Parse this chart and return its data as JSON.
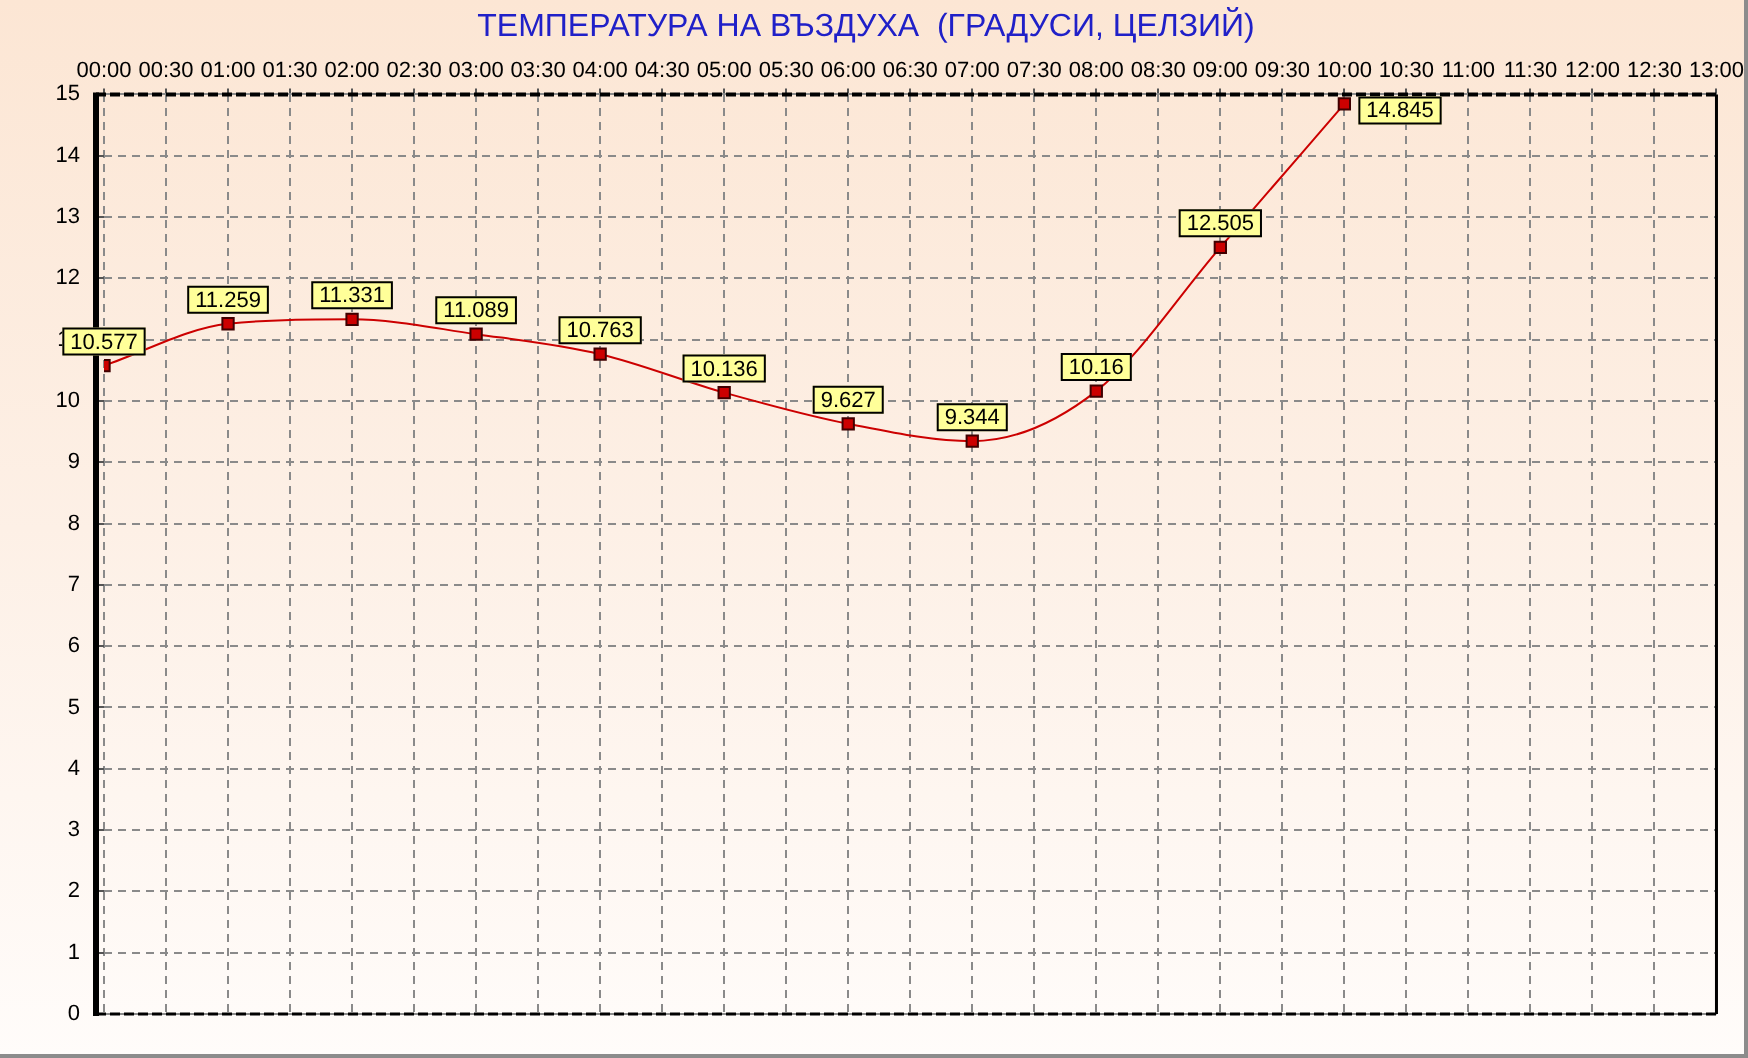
{
  "chart_data": {
    "type": "line",
    "title": "ТЕМПЕРАТУРА НА ВЪЗДУХА  (ГРАДУСИ, ЦЕЛЗИЙ)",
    "x": [
      0,
      1,
      2,
      3,
      4,
      5,
      6,
      7,
      8,
      9,
      10
    ],
    "series": [
      {
        "color": "#cc0000",
        "values": [
          10.577,
          11.259,
          11.331,
          11.089,
          10.763,
          10.136,
          9.627,
          9.344,
          10.16,
          12.505,
          14.845
        ]
      }
    ],
    "xlim": [
      0,
      13
    ],
    "xticks": [
      {
        "value": 0,
        "label": "00:00"
      },
      {
        "value": 0.5,
        "label": "00:30"
      },
      {
        "value": 1,
        "label": "01:00"
      },
      {
        "value": 1.5,
        "label": "01:30"
      },
      {
        "value": 2,
        "label": "02:00"
      },
      {
        "value": 2.5,
        "label": "02:30"
      },
      {
        "value": 3,
        "label": "03:00"
      },
      {
        "value": 3.5,
        "label": "03:30"
      },
      {
        "value": 4,
        "label": "04:00"
      },
      {
        "value": 4.5,
        "label": "04:30"
      },
      {
        "value": 5,
        "label": "05:00"
      },
      {
        "value": 5.5,
        "label": "05:30"
      },
      {
        "value": 6,
        "label": "06:00"
      },
      {
        "value": 6.5,
        "label": "06:30"
      },
      {
        "value": 7,
        "label": "07:00"
      },
      {
        "value": 7.5,
        "label": "07:30"
      },
      {
        "value": 8,
        "label": "08:00"
      },
      {
        "value": 8.5,
        "label": "08:30"
      },
      {
        "value": 9,
        "label": "09:00"
      },
      {
        "value": 9.5,
        "label": "09:30"
      },
      {
        "value": 10,
        "label": "10:00"
      },
      {
        "value": 10.5,
        "label": "10:30"
      },
      {
        "value": 11,
        "label": "11:00"
      },
      {
        "value": 11.5,
        "label": "11:30"
      },
      {
        "value": 12,
        "label": "12:00"
      },
      {
        "value": 12.5,
        "label": "12:30"
      },
      {
        "value": 13,
        "label": "13:00"
      }
    ],
    "ylim": [
      0,
      15
    ],
    "yticks": [
      0,
      1,
      2,
      3,
      4,
      5,
      6,
      7,
      8,
      9,
      10,
      11,
      12,
      13,
      14,
      15
    ],
    "grid": true,
    "marker": "square",
    "line_style": "solid",
    "data_labels": true
  }
}
